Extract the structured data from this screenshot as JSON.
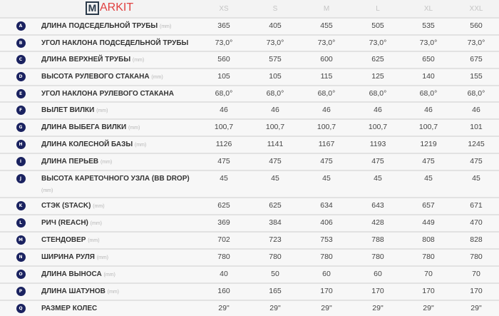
{
  "sizes": [
    "XS",
    "S",
    "M",
    "L",
    "XL",
    "XXL"
  ],
  "unit": "(mm)",
  "rows": [
    {
      "letter": "A",
      "label": "ДЛИНА ПОДСЕДЕЛЬНОЙ ТРУБЫ",
      "unit": "(mm)",
      "values": [
        "365",
        "405",
        "455",
        "505",
        "535",
        "560"
      ]
    },
    {
      "letter": "B",
      "label": "УГОЛ НАКЛОНА ПОДСЕДЕЛЬНОЙ ТРУБЫ",
      "unit": "",
      "values": [
        "73,0°",
        "73,0°",
        "73,0°",
        "73,0°",
        "73,0°",
        "73,0°"
      ]
    },
    {
      "letter": "C",
      "label": "ДЛИНА ВЕРХНЕЙ ТРУБЫ",
      "unit": "(mm)",
      "values": [
        "560",
        "575",
        "600",
        "625",
        "650",
        "675"
      ]
    },
    {
      "letter": "D",
      "label": "ВЫСОТА РУЛЕВОГО СТАКАНА",
      "unit": "(mm)",
      "values": [
        "105",
        "105",
        "115",
        "125",
        "140",
        "155"
      ]
    },
    {
      "letter": "E",
      "label": "УГОЛ НАКЛОНА РУЛЕВОГО СТАКАНА",
      "unit": "",
      "values": [
        "68,0°",
        "68,0°",
        "68,0°",
        "68,0°",
        "68,0°",
        "68,0°"
      ]
    },
    {
      "letter": "F",
      "label": "ВЫЛЕТ ВИЛКИ",
      "unit": "(mm)",
      "values": [
        "46",
        "46",
        "46",
        "46",
        "46",
        "46"
      ]
    },
    {
      "letter": "G",
      "label": "ДЛИНА ВЫБЕГА ВИЛКИ",
      "unit": "(mm)",
      "values": [
        "100,7",
        "100,7",
        "100,7",
        "100,7",
        "100,7",
        "101"
      ]
    },
    {
      "letter": "H",
      "label": "ДЛИНА КОЛЕСНОЙ БАЗЫ",
      "unit": "(mm)",
      "values": [
        "1126",
        "1141",
        "1167",
        "1193",
        "1219",
        "1245"
      ]
    },
    {
      "letter": "I",
      "label": "ДЛИНА ПЕРЬЕВ",
      "unit": "(mm)",
      "values": [
        "475",
        "475",
        "475",
        "475",
        "475",
        "475"
      ]
    },
    {
      "letter": "J",
      "label": "ВЫСОТА КАРЕТОЧНОГО УЗЛА (BB DROP)",
      "unit": "(mm)",
      "values": [
        "45",
        "45",
        "45",
        "45",
        "45",
        "45"
      ]
    },
    {
      "letter": "K",
      "label": "СТЭК (STACK)",
      "unit": "(mm)",
      "values": [
        "625",
        "625",
        "634",
        "643",
        "657",
        "671"
      ]
    },
    {
      "letter": "L",
      "label": "РИЧ (REACH)",
      "unit": "(mm)",
      "values": [
        "369",
        "384",
        "406",
        "428",
        "449",
        "470"
      ]
    },
    {
      "letter": "M",
      "label": "СТЕНДОВЕР",
      "unit": "(mm)",
      "values": [
        "702",
        "723",
        "753",
        "788",
        "808",
        "828"
      ]
    },
    {
      "letter": "N",
      "label": "ШИРИНА РУЛЯ",
      "unit": "(mm)",
      "values": [
        "780",
        "780",
        "780",
        "780",
        "780",
        "780"
      ]
    },
    {
      "letter": "O",
      "label": "ДЛИНА ВЫНОСА",
      "unit": "(mm)",
      "values": [
        "40",
        "50",
        "60",
        "60",
        "70",
        "70"
      ]
    },
    {
      "letter": "P",
      "label": "ДЛИНА ШАТУНОВ",
      "unit": "(mm)",
      "values": [
        "160",
        "165",
        "170",
        "170",
        "170",
        "170"
      ]
    },
    {
      "letter": "Q",
      "label": "РАЗМЕР КОЛЕС",
      "unit": "",
      "values": [
        "29\"",
        "29\"",
        "29\"",
        "29\"",
        "29\"",
        "29\""
      ]
    }
  ],
  "watermark": {
    "box_letter": "M",
    "text": "ARKIT"
  }
}
